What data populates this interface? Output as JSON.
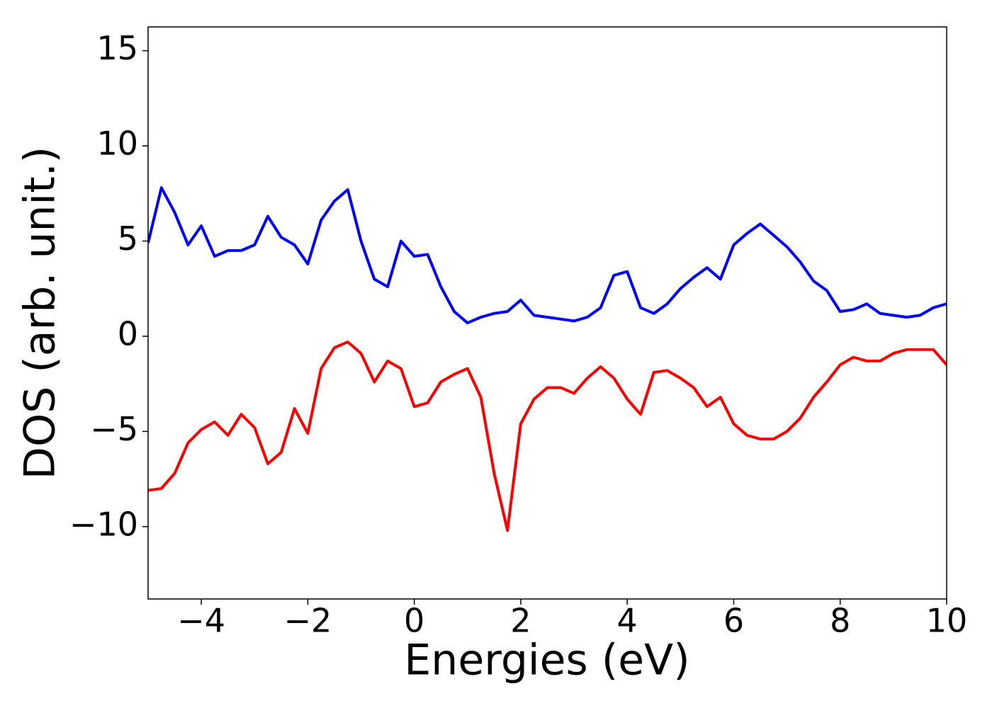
{
  "chart_data": {
    "type": "line",
    "xlabel": "Energies (eV)",
    "ylabel": "DOS (arb. unit.)",
    "x": [
      -5,
      -4.75,
      -4.5,
      -4.25,
      -4,
      -3.75,
      -3.5,
      -3.25,
      -3,
      -2.75,
      -2.5,
      -2.25,
      -2,
      -1.75,
      -1.5,
      -1.25,
      -1,
      -0.75,
      -0.5,
      -0.25,
      0,
      0.25,
      0.5,
      0.75,
      1,
      1.25,
      1.5,
      1.75,
      2,
      2.25,
      2.5,
      2.75,
      3,
      3.25,
      3.5,
      3.75,
      4,
      4.25,
      4.5,
      4.75,
      5,
      5.25,
      5.5,
      5.75,
      6,
      6.25,
      6.5,
      6.75,
      7,
      7.25,
      7.5,
      7.75,
      8,
      8.25,
      8.5,
      8.75,
      9,
      9.25,
      9.5,
      9.75,
      10
    ],
    "series": [
      {
        "color": "#0000ff",
        "values": [
          4.9,
          7.8,
          6.5,
          4.8,
          5.8,
          4.2,
          4.5,
          4.5,
          4.8,
          6.3,
          5.2,
          4.8,
          3.8,
          6.1,
          7.1,
          7.7,
          5.0,
          3.0,
          2.6,
          5.0,
          4.2,
          4.3,
          2.6,
          1.3,
          0.7,
          1.0,
          1.2,
          1.3,
          1.9,
          1.1,
          1.0,
          0.9,
          0.8,
          1.0,
          1.5,
          3.2,
          3.4,
          1.5,
          1.2,
          1.7,
          2.5,
          3.1,
          3.6,
          3.0,
          4.8,
          5.4,
          5.9,
          5.3,
          4.7,
          3.9,
          2.9,
          2.4,
          1.3,
          1.4,
          1.7,
          1.2,
          1.1,
          1.0,
          1.1,
          1.5,
          1.7
        ]
      },
      {
        "color": "#ff0000",
        "values": [
          -8.1,
          -8.0,
          -7.2,
          -5.6,
          -4.9,
          -4.5,
          -5.2,
          -4.1,
          -4.8,
          -6.7,
          -6.1,
          -3.8,
          -5.1,
          -1.7,
          -0.6,
          -0.3,
          -0.9,
          -2.4,
          -1.3,
          -1.7,
          -3.7,
          -3.5,
          -2.4,
          -2.0,
          -1.7,
          -3.2,
          -7.2,
          -10.2,
          -4.6,
          -3.3,
          -2.7,
          -2.7,
          -3.0,
          -2.2,
          -1.6,
          -2.2,
          -3.3,
          -4.1,
          -1.9,
          -1.8,
          -2.2,
          -2.7,
          -3.7,
          -3.2,
          -4.6,
          -5.2,
          -5.4,
          -5.4,
          -5.0,
          -4.3,
          -3.2,
          -2.4,
          -1.5,
          -1.1,
          -1.3,
          -1.3,
          -0.9,
          -0.7,
          -0.7,
          -0.7,
          -1.5
        ]
      }
    ],
    "xlim": [
      -5,
      10
    ],
    "ylim": [
      -13.8,
      16.25
    ],
    "xticks": [
      {
        "value": -4,
        "label": "−4"
      },
      {
        "value": -2,
        "label": "−2"
      },
      0,
      2,
      4,
      6,
      8,
      10
    ],
    "yticks": [
      {
        "value": -10,
        "label": "−10"
      },
      {
        "value": -5,
        "label": "−5"
      },
      0,
      5,
      10,
      15
    ],
    "grid": false
  }
}
